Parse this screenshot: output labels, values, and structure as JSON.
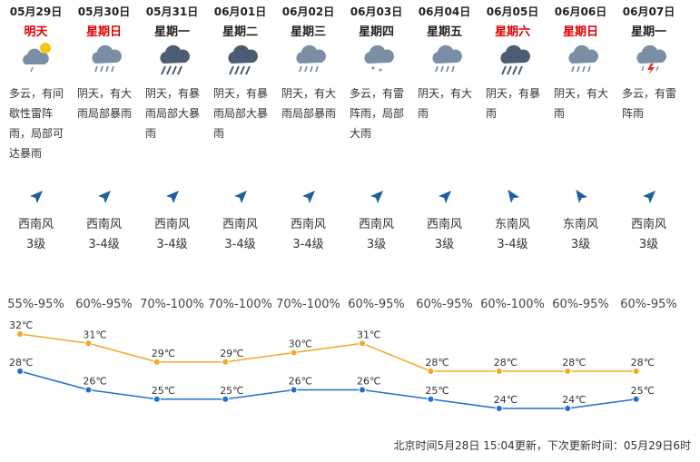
{
  "days": [
    {
      "date": "05月29日",
      "weekday": "明天",
      "weekday_red": true,
      "icon": "cloudy-rain-icon",
      "desc": "多云，有间歇性雷阵雨，局部可达暴雨",
      "wind_dir": "西南风",
      "wind_level": "3级",
      "humidity": "55%-95%"
    },
    {
      "date": "05月30日",
      "weekday": "星期日",
      "weekday_red": true,
      "icon": "heavy-rain-icon",
      "desc": "阴天，有大雨局部暴雨",
      "wind_dir": "西南风",
      "wind_level": "3-4级",
      "humidity": "60%-95%"
    },
    {
      "date": "05月31日",
      "weekday": "星期一",
      "weekday_red": false,
      "icon": "rainstorm-icon",
      "desc": "阴天，有暴雨局部大暴雨",
      "wind_dir": "西南风",
      "wind_level": "3-4级",
      "humidity": "70%-100%"
    },
    {
      "date": "06月01日",
      "weekday": "星期二",
      "weekday_red": false,
      "icon": "rainstorm-icon",
      "desc": "阴天，有暴雨局部大暴雨",
      "wind_dir": "西南风",
      "wind_level": "3-4级",
      "humidity": "70%-100%"
    },
    {
      "date": "06月02日",
      "weekday": "星期三",
      "weekday_red": false,
      "icon": "heavy-rain-icon",
      "desc": "阴天，有大雨局部暴雨",
      "wind_dir": "西南风",
      "wind_level": "3-4级",
      "humidity": "70%-100%"
    },
    {
      "date": "06月03日",
      "weekday": "星期四",
      "weekday_red": false,
      "icon": "shower-icon",
      "desc": "多云，有雷阵雨，局部大雨",
      "wind_dir": "西南风",
      "wind_level": "3级",
      "humidity": "60%-95%"
    },
    {
      "date": "06月04日",
      "weekday": "星期五",
      "weekday_red": false,
      "icon": "heavy-rain-icon",
      "desc": "阴天，有大雨",
      "wind_dir": "西南风",
      "wind_level": "3级",
      "humidity": "60%-95%"
    },
    {
      "date": "06月05日",
      "weekday": "星期六",
      "weekday_red": true,
      "icon": "rainstorm-icon",
      "desc": "阴天，有暴雨",
      "wind_dir": "东南风",
      "wind_level": "3-4级",
      "humidity": "60%-100%"
    },
    {
      "date": "06月06日",
      "weekday": "星期日",
      "weekday_red": true,
      "icon": "heavy-rain-icon",
      "desc": "阴天，有大雨",
      "wind_dir": "东南风",
      "wind_level": "3级",
      "humidity": "60%-95%"
    },
    {
      "date": "06月07日",
      "weekday": "星期一",
      "weekday_red": false,
      "icon": "thunder-shower-icon",
      "desc": "多云，有雷阵雨",
      "wind_dir": "西南风",
      "wind_level": "3级",
      "humidity": "60%-95%"
    }
  ],
  "chart_data": {
    "type": "line",
    "x": [
      "05月29日",
      "05月30日",
      "05月31日",
      "06月01日",
      "06月02日",
      "06月03日",
      "06月04日",
      "06月05日",
      "06月06日",
      "06月07日"
    ],
    "series": [
      {
        "values": [
          32,
          31,
          29,
          29,
          30,
          31,
          28,
          28,
          28,
          28
        ],
        "color": "#f5a623"
      },
      {
        "values": [
          28,
          26,
          25,
          25,
          26,
          26,
          25,
          24,
          24,
          25
        ],
        "color": "#1e6fd0"
      }
    ],
    "unit": "℃",
    "ylim": [
      24,
      32
    ]
  },
  "footer": {
    "text": "北京时间5月28日 15:04更新，下次更新时间：05月29日6时"
  },
  "colors": {
    "red": "#e00000",
    "high": "#f5a623",
    "low": "#1e6fd0",
    "icon": "#7a8fa6"
  }
}
